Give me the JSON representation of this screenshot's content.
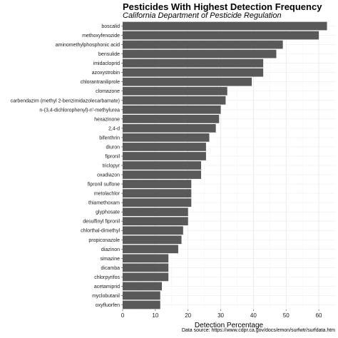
{
  "chart_data": {
    "type": "bar",
    "orientation": "horizontal",
    "title": "Pesticides With Highest Detection Frequency",
    "subtitle": "California Department of Pesticide Regulation",
    "xlabel": "Detection Percentage",
    "ylabel": "",
    "xlim": [
      0,
      65
    ],
    "xticks": [
      0,
      10,
      20,
      30,
      40,
      50,
      60
    ],
    "grid": true,
    "bar_color": "#595959",
    "caption": "Data source: https://www.cdpr.ca.gov/docs/emon/surfwtr/surfdata.htm",
    "categories": [
      "boscalid",
      "methoxyfenozide",
      "aminomethylphosphonic acid",
      "bensulide",
      "imidacloprid",
      "azoxystrobin",
      "chlorantraniliprole",
      "clomazone",
      "carbendazim (methyl 2-benzimidazolecarbamate)",
      "n-(3,4-dichlorophenyl)-n'-methylurea",
      "hexazinone",
      "2,4-d",
      "bifenthrin",
      "diuron",
      "fipronil",
      "triclopyr",
      "oxadiazon",
      "fipronil sulfone",
      "metolachlor",
      "thiamethoxam",
      "glyphosate",
      "desulfinyl fipronil",
      "chlorthal-dimethyl",
      "propiconazole",
      "diazinon",
      "simazine",
      "dicamba",
      "chlorpyrifos",
      "acetamiprid",
      "myclobutanil",
      "oxyfluorfen"
    ],
    "values": [
      62.5,
      60.0,
      49.0,
      47.0,
      43.0,
      43.0,
      39.5,
      32.0,
      31.5,
      30.0,
      29.5,
      28.5,
      26.5,
      25.5,
      25.5,
      24.0,
      24.0,
      21.0,
      21.0,
      21.0,
      20.0,
      20.0,
      18.5,
      18.0,
      17.0,
      14.0,
      14.0,
      14.0,
      12.0,
      11.5,
      11.5
    ]
  }
}
